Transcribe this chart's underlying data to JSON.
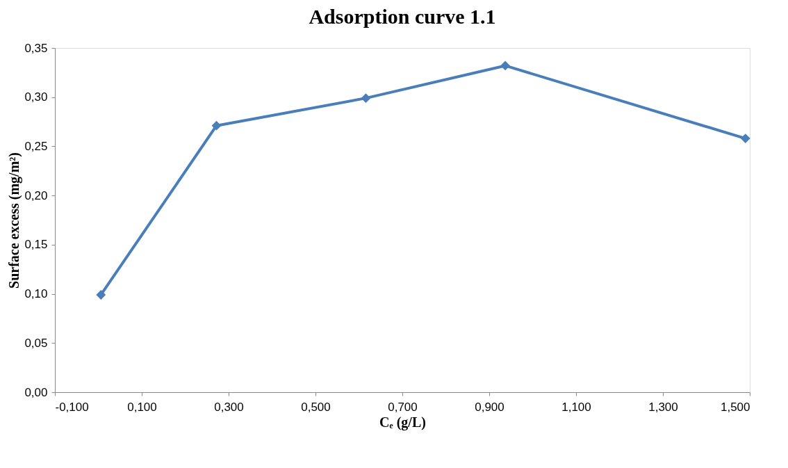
{
  "chart_data": {
    "type": "line",
    "title": "Adsorption curve 1.1",
    "xlabel": "Cₑ (g/L)",
    "ylabel": "Surface excess (mg/m²)",
    "x": [
      0.006,
      0.272,
      0.616,
      0.937,
      1.49
    ],
    "series": [
      {
        "color": "#4a7ebb",
        "values": [
          0.099,
          0.271,
          0.299,
          0.332,
          0.258
        ]
      }
    ],
    "xlim": [
      -0.1,
      1.5
    ],
    "xticks": [
      {
        "value": -0.1,
        "label": "-0,100"
      },
      {
        "value": 0.1,
        "label": "0,100"
      },
      {
        "value": 0.3,
        "label": "0,300"
      },
      {
        "value": 0.5,
        "label": "0,500"
      },
      {
        "value": 0.7,
        "label": "0,700"
      },
      {
        "value": 0.9,
        "label": "0,900"
      },
      {
        "value": 1.1,
        "label": "1,100"
      },
      {
        "value": 1.3,
        "label": "1,300"
      },
      {
        "value": 1.5,
        "label": "1,500"
      }
    ],
    "ylim": [
      0,
      0.35
    ],
    "yticks": [
      {
        "value": 0,
        "label": "0,00"
      },
      {
        "value": 0.05,
        "label": "0,05"
      },
      {
        "value": 0.1,
        "label": "0,10"
      },
      {
        "value": 0.15,
        "label": "0,15"
      },
      {
        "value": 0.2,
        "label": "0,20"
      },
      {
        "value": 0.25,
        "label": "0,25"
      },
      {
        "value": 0.3,
        "label": "0,30"
      },
      {
        "value": 0.35,
        "label": "0,35"
      }
    ],
    "grid": false,
    "marker": "diamond",
    "line_style": "solid"
  }
}
